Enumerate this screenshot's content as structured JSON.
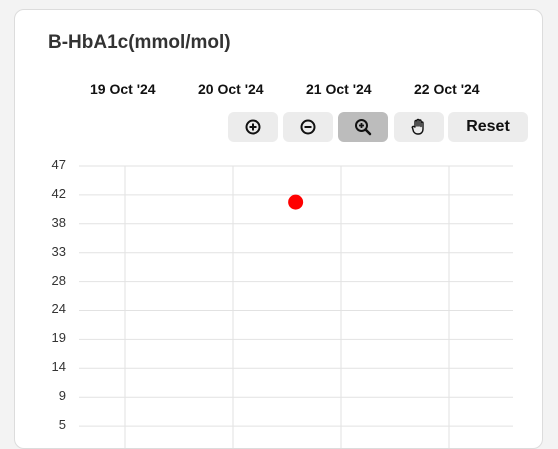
{
  "card": {
    "title": "B-HbA1c(mmol/mol)"
  },
  "toolbar": {
    "zoom_in_icon": "circle-plus-icon",
    "zoom_out_icon": "circle-minus-icon",
    "zoom_select_icon": "magnifier-plus-icon",
    "pan_icon": "hand-icon",
    "reset_label": "Reset",
    "active_tool": "zoom"
  },
  "colors": {
    "point": "#ff0000",
    "grid": "#e2e2e2",
    "active_button": "#bcbcbc",
    "button": "#ececec"
  },
  "chart_data": {
    "type": "scatter",
    "title": "B-HbA1c(mmol/mol)",
    "x_categories": [
      "19 Oct '24",
      "20 Oct '24",
      "21 Oct '24",
      "22 Oct '24"
    ],
    "y_ticks": [
      47,
      42,
      38,
      33,
      28,
      24,
      19,
      14,
      9,
      5
    ],
    "ylim": [
      5,
      47
    ],
    "grid": true,
    "series": [
      {
        "points": [
          {
            "x": "20 Oct '24",
            "x_offset_days": 0.58,
            "y": 41
          }
        ]
      }
    ]
  }
}
